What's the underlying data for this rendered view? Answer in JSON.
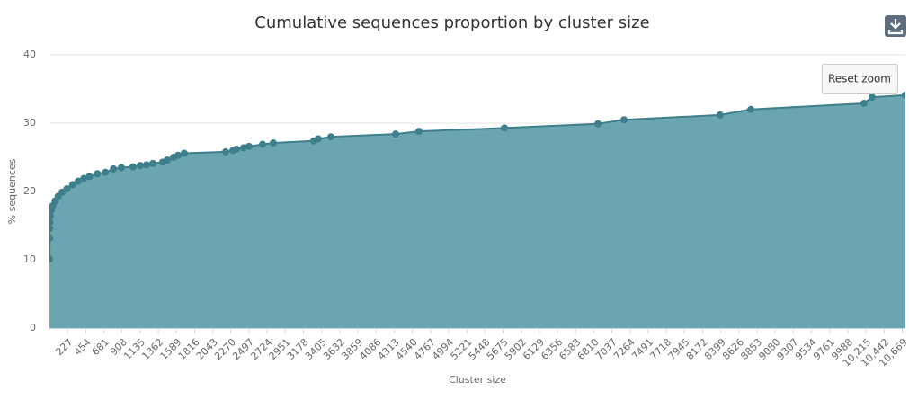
{
  "chart_data": {
    "type": "area",
    "title": "Cumulative sequences proportion by cluster size",
    "x_label": "Cluster size",
    "y_label": "% sequences",
    "x": [
      1,
      2,
      3,
      5,
      10,
      20,
      40,
      70,
      110,
      160,
      220,
      290,
      360,
      430,
      500,
      600,
      700,
      800,
      900,
      1046,
      1136,
      1215,
      1294,
      1417,
      1474,
      1552,
      1609,
      1687,
      2205,
      2295,
      2340,
      2430,
      2497,
      2666,
      2801,
      3307,
      3363,
      3521,
      4331,
      4623,
      5692,
      6862,
      7188,
      8391,
      8774,
      10191,
      10292,
      10709
    ],
    "values": [
      10.1,
      13.2,
      14.6,
      15.5,
      16.4,
      17.2,
      17.9,
      18.6,
      19.3,
      19.9,
      20.4,
      21.0,
      21.5,
      21.9,
      22.2,
      22.6,
      22.8,
      23.3,
      23.5,
      23.6,
      23.8,
      23.9,
      24.1,
      24.3,
      24.6,
      25.0,
      25.3,
      25.6,
      25.8,
      26.0,
      26.2,
      26.4,
      26.6,
      26.9,
      27.1,
      27.4,
      27.7,
      28.0,
      28.4,
      28.8,
      29.3,
      29.9,
      30.5,
      31.2,
      32.0,
      32.9,
      33.8,
      34.1
    ],
    "color": "#6aa5b0",
    "line_color": "#3d7f8c",
    "xlim": [
      0,
      10709
    ],
    "ylim": [
      0,
      40
    ],
    "xticks": [
      227,
      454,
      681,
      908,
      1135,
      1362,
      1589,
      1816,
      2043,
      2270,
      2497,
      2724,
      2951,
      3178,
      3405,
      3632,
      3859,
      4086,
      4313,
      4540,
      4767,
      4994,
      5221,
      5448,
      5675,
      5902,
      6129,
      6356,
      6583,
      6810,
      7037,
      7264,
      7491,
      7718,
      7945,
      8172,
      8399,
      8626,
      8853,
      9080,
      9307,
      9534,
      9761,
      9988,
      {
        "value": 10215,
        "label": "10,215"
      },
      {
        "value": 10442,
        "label": "10,442"
      },
      {
        "value": 10669,
        "label": "10,669"
      }
    ],
    "yticks": [
      0,
      10,
      20,
      30,
      40
    ],
    "grid": true
  },
  "buttons": {
    "reset_zoom": "Reset zoom"
  }
}
